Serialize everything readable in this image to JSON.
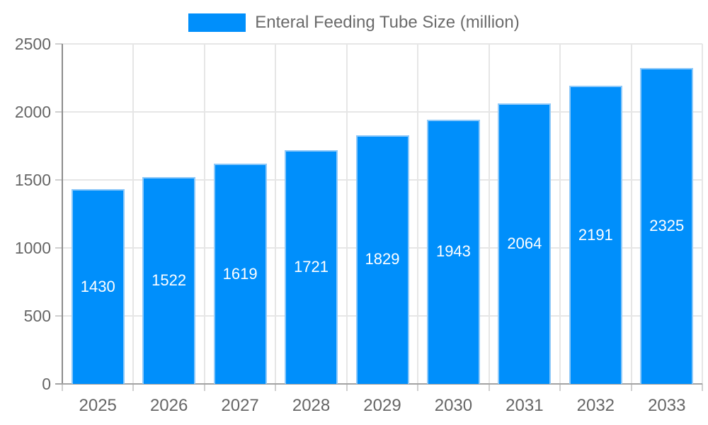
{
  "chart_data": {
    "type": "bar",
    "title": "Enteral Feeding Tube Size (million)",
    "categories": [
      "2025",
      "2026",
      "2027",
      "2028",
      "2029",
      "2030",
      "2031",
      "2032",
      "2033"
    ],
    "values": [
      1430,
      1522,
      1619,
      1721,
      1829,
      1943,
      2064,
      2191,
      2325
    ],
    "xlabel": "",
    "ylabel": "",
    "ylim": [
      0,
      2500
    ],
    "yticks": [
      0,
      500,
      1000,
      1500,
      2000,
      2500
    ],
    "grid": "on",
    "legend_position": "top-center",
    "legend_entries": [
      "Enteral Feeding Tube Size (million)"
    ],
    "bar_color": "#008FFB",
    "bar_stroke_color": "#8ec9f9",
    "value_label_color": "#ffffff",
    "axis_tick_label_color": "#666666",
    "legend_text_color": "#6b6b6b",
    "grid_color": "#e6e6e6"
  }
}
